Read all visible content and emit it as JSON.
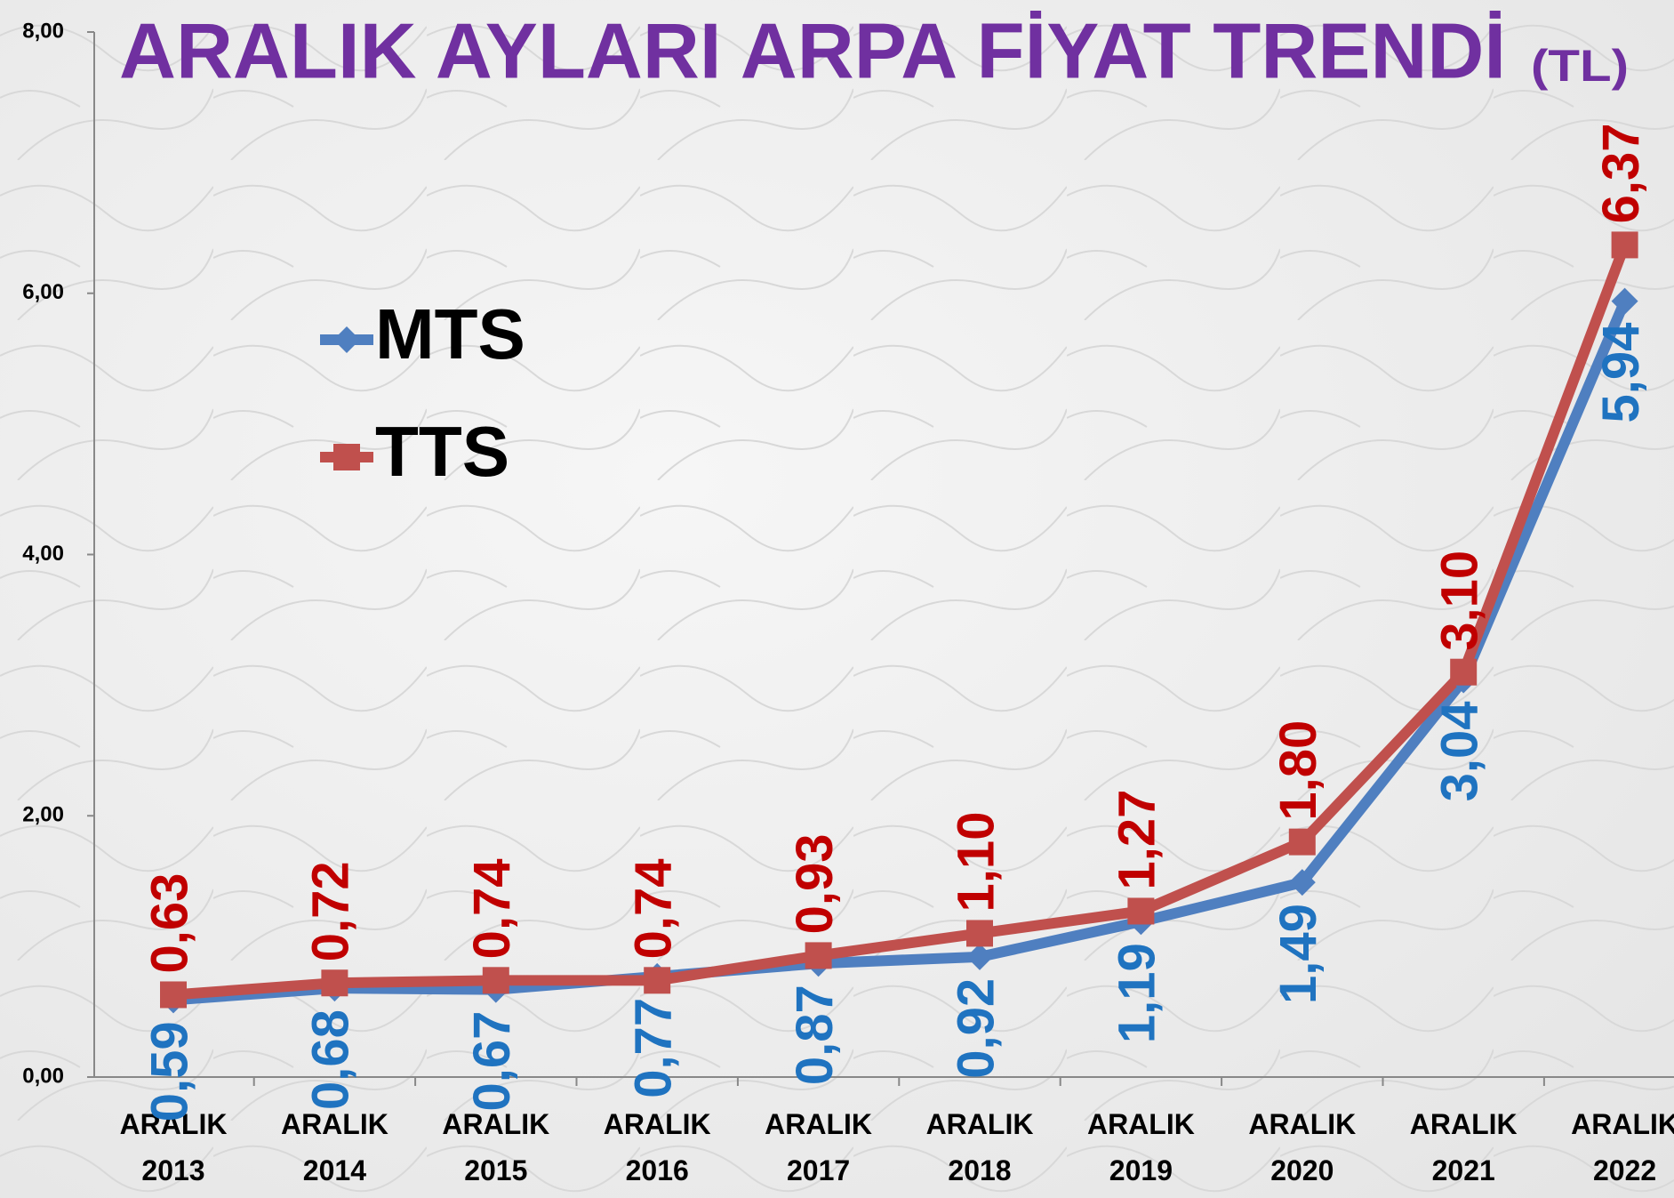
{
  "chart_data": {
    "type": "line",
    "title": "ARALIK AYLARI ARPA FİYAT TRENDİ",
    "unit": "(TL)",
    "categories": [
      "ARALIK 2013",
      "ARALIK 2014",
      "ARALIK 2015",
      "ARALIK 2016",
      "ARALIK 2017",
      "ARALIK 2018",
      "ARALIK 2019",
      "ARALIK 2020",
      "ARALIK 2021",
      "ARALIK 2022"
    ],
    "series": [
      {
        "name": "MTS",
        "color": "#4f7fc0",
        "label_color": "#1f73c0",
        "marker": "diamond",
        "values": [
          0.59,
          0.68,
          0.67,
          0.77,
          0.87,
          0.92,
          1.19,
          1.49,
          3.04,
          5.94
        ],
        "value_labels": [
          "0,59",
          "0,68",
          "0,67",
          "0,77",
          "0,87",
          "0,92",
          "1,19",
          "1,49",
          "3,04",
          "5,94"
        ]
      },
      {
        "name": "TTS",
        "color": "#c0504d",
        "label_color": "#c00000",
        "marker": "square",
        "values": [
          0.63,
          0.72,
          0.74,
          0.74,
          0.93,
          1.1,
          1.27,
          1.8,
          3.1,
          6.37
        ],
        "value_labels": [
          "0,63",
          "0,72",
          "0,74",
          "0,74",
          "0,93",
          "1,10",
          "1,27",
          "1,80",
          "3,10",
          "6,37"
        ]
      }
    ],
    "ylim": [
      0,
      8
    ],
    "yticks": [
      {
        "value": 0,
        "label": "0,00"
      },
      {
        "value": 2,
        "label": "2,00"
      },
      {
        "value": 4,
        "label": "4,00"
      },
      {
        "value": 6,
        "label": "6,00"
      },
      {
        "value": 8,
        "label": "8,00"
      }
    ],
    "grid": false
  }
}
